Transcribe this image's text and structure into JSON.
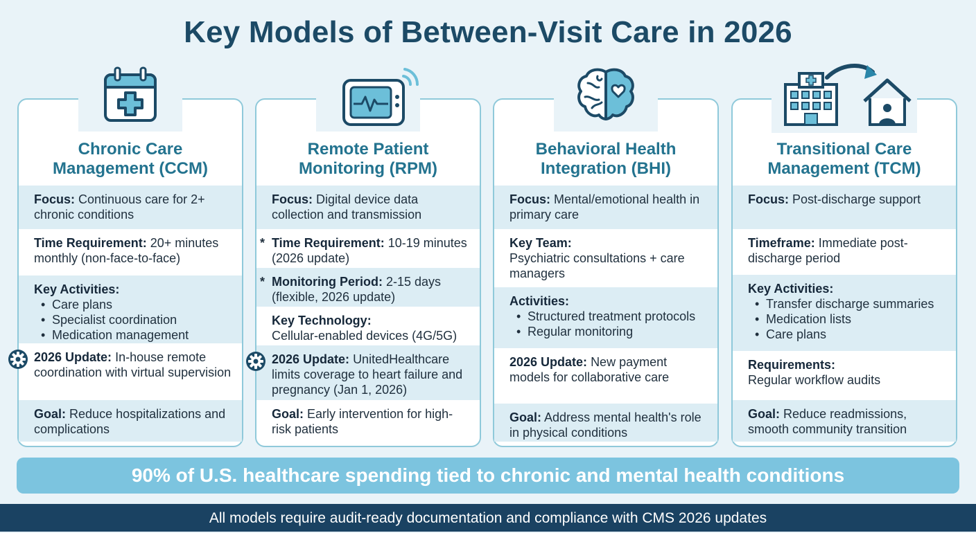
{
  "title": "Key Models of Between-Visit Care in 2026",
  "models": [
    {
      "icon": "calendar-medical-icon",
      "title_line1": "Chronic Care",
      "title_line2": "Management (CCM)",
      "focus_label": "Focus:",
      "focus_text": "Continuous care for 2+ chronic conditions",
      "time_label": "Time Requirement:",
      "time_text": "20+ minutes monthly (non-face-to-face)",
      "activities_label": "Key Activities:",
      "activities": [
        "Care plans",
        "Specialist coordination",
        "Medication management"
      ],
      "update_label": "2026 Update:",
      "update_text": "In-house remote coordination with virtual supervision",
      "goal_label": "Goal:",
      "goal_text": "Reduce hospitalizations and complications"
    },
    {
      "icon": "monitor-device-icon",
      "title_line1": "Remote Patient",
      "title_line2": "Monitoring (RPM)",
      "focus_label": "Focus:",
      "focus_text": "Digital device data collection and transmission",
      "time_label": "Time Requirement:",
      "time_text": "10-19 minutes (2026 update)",
      "period_label": "Monitoring Period:",
      "period_text": "2-15 days (flexible, 2026 update)",
      "tech_label": "Key Technology:",
      "tech_text": "Cellular-enabled devices (4G/5G)",
      "update_label": "2026 Update:",
      "update_text": "UnitedHealthcare limits coverage to heart failure and pregnancy (Jan 1, 2026)",
      "goal_label": "Goal:",
      "goal_text": "Early intervention for high-risk patients",
      "asterisk": "*"
    },
    {
      "icon": "brain-heart-icon",
      "title_line1": "Behavioral Health",
      "title_line2": "Integration (BHI)",
      "focus_label": "Focus:",
      "focus_text": "Mental/emotional health in primary care",
      "team_label": "Key Team:",
      "team_text": "Psychiatric consultations + care managers",
      "activities_label": "Activities:",
      "activities": [
        "Structured treatment protocols",
        "Regular monitoring"
      ],
      "update_label": "2026 Update:",
      "update_text": "New payment models for collaborative care",
      "goal_label": "Goal:",
      "goal_text": "Address mental health's role in physical conditions"
    },
    {
      "icon": "hospital-to-home-icon",
      "title_line1": "Transitional Care",
      "title_line2": "Management (TCM)",
      "focus_label": "Focus:",
      "focus_text": "Post-discharge support",
      "timeframe_label": "Timeframe:",
      "timeframe_text": "Immediate post-discharge period",
      "activities_label": "Key Activities:",
      "activities": [
        "Transfer discharge summaries",
        "Medication lists",
        "Care plans"
      ],
      "req_label": "Requirements:",
      "req_text": "Regular workflow audits",
      "goal_label": "Goal:",
      "goal_text": "Reduce readmissions, smooth community transition"
    }
  ],
  "banner": "90% of U.S. healthcare spending tied to chronic and mental health conditions",
  "footer": "All models require audit-ready documentation and compliance with CMS 2026 updates",
  "colors": {
    "title": "#1c4a66",
    "card_title": "#23738f",
    "border": "#8fc9da",
    "shade": "#dcedf4",
    "banner": "#7cc4df",
    "footer": "#1a4262"
  }
}
